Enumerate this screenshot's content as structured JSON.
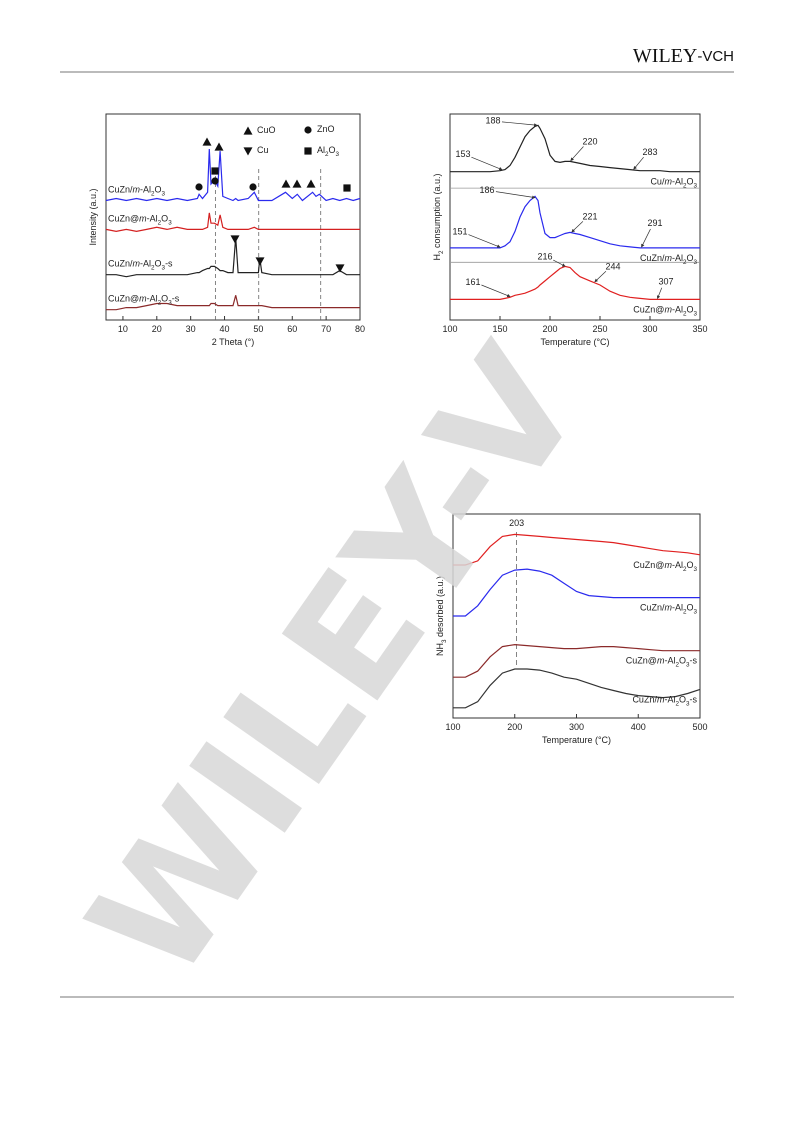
{
  "header": {
    "brand": "WILEY-VCH"
  },
  "watermark": "WILEY-V",
  "chart_data": [
    {
      "type": "line",
      "xlabel": "2 Theta (°)",
      "ylabel": "Intensity (a.u.)",
      "xlim": [
        5,
        80
      ],
      "xticks": [
        10,
        20,
        30,
        40,
        50,
        60,
        70,
        80
      ],
      "ylim": [
        0,
        100
      ],
      "legend": [
        {
          "symbol": "triangle-up",
          "label": "CuO"
        },
        {
          "symbol": "circle",
          "label": "ZnO"
        },
        {
          "symbol": "triangle-down",
          "label": "Cu"
        },
        {
          "symbol": "square",
          "label": "Al2O3"
        }
      ],
      "ref_lines": [
        37.3,
        50.1,
        68.4
      ],
      "x": [
        5,
        8,
        11,
        14,
        17,
        20,
        23,
        26,
        29,
        32,
        32.5,
        33.5,
        35,
        35.5,
        36,
        37,
        38,
        38.7,
        39.5,
        41,
        42.5,
        43.3,
        44,
        47,
        48.8,
        50,
        50.4,
        51,
        54,
        58,
        60,
        61.5,
        63,
        66,
        67,
        68,
        70,
        72,
        74,
        76,
        78,
        80
      ],
      "series": [
        {
          "name": "CuZn/m-Al2O3",
          "color": "#2a2aee",
          "values": [
            58,
            59,
            58,
            59,
            58,
            59,
            58,
            59,
            58,
            59,
            61,
            59,
            62,
            83,
            66,
            68,
            65,
            82,
            60,
            59,
            58,
            59,
            58,
            59,
            62,
            58,
            58,
            58,
            58,
            62,
            59,
            61,
            58,
            62,
            60,
            61,
            58,
            59,
            58,
            59,
            58,
            59
          ]
        },
        {
          "name": "CuZn@m-Al2O3",
          "color": "#d42020",
          "values": [
            44,
            43,
            44,
            43,
            44,
            45,
            44,
            45,
            44,
            44,
            44,
            44,
            45,
            52,
            47,
            47,
            46,
            51,
            45,
            44,
            44,
            44,
            44,
            44,
            45,
            44,
            44,
            44,
            44,
            44,
            44,
            44,
            44,
            44,
            44,
            44,
            44,
            44,
            44,
            44,
            44,
            44
          ]
        },
        {
          "name": "CuZn/m-Al2O3-s",
          "color": "#222222",
          "values": [
            22,
            22,
            21,
            22,
            22,
            22,
            22,
            22,
            22,
            23,
            23,
            24,
            25,
            25,
            26,
            26,
            25,
            24,
            24,
            23,
            23,
            40,
            23,
            23,
            23,
            23,
            30,
            23,
            22,
            22,
            22,
            22,
            22,
            22,
            22,
            22,
            22,
            22,
            24,
            22,
            22,
            22
          ]
        },
        {
          "name": "CuZn@m-Al2O3-s",
          "color": "#8b2a2a",
          "values": [
            5,
            5,
            6,
            6,
            7,
            8,
            8,
            7,
            7,
            7,
            7,
            7,
            7,
            7,
            8,
            8,
            7,
            7,
            7,
            7,
            7,
            12,
            7,
            7,
            7,
            7,
            7,
            7,
            6,
            6,
            6,
            6,
            6,
            6,
            6,
            6,
            6,
            6,
            6,
            6,
            6,
            6
          ]
        }
      ]
    },
    {
      "type": "line",
      "xlabel": "Temperature (°C)",
      "ylabel": "H2 consumption (a.u.)",
      "xlim": [
        100,
        350
      ],
      "xticks": [
        100,
        150,
        200,
        250,
        300,
        350
      ],
      "ylim": [
        0,
        100
      ],
      "panel_dividers": [
        64,
        28
      ],
      "x": [
        100,
        110,
        120,
        130,
        140,
        150,
        155,
        160,
        165,
        170,
        175,
        180,
        185,
        188,
        190,
        195,
        200,
        205,
        210,
        215,
        220,
        225,
        230,
        240,
        250,
        260,
        270,
        280,
        290,
        300,
        310,
        320,
        330,
        340,
        350
      ],
      "series": [
        {
          "name": "Cu/m-Al2O3",
          "color": "#222222",
          "peaks": [
            153,
            188,
            220,
            283
          ],
          "values": [
            72,
            72,
            72,
            72,
            72,
            72.5,
            73,
            75,
            79,
            84,
            89,
            92,
            94,
            94.5,
            93,
            88,
            80,
            77,
            76.5,
            77,
            77,
            76.5,
            76,
            75,
            74.5,
            74,
            73.5,
            73,
            72.5,
            72.5,
            72.5,
            72,
            72,
            72,
            72
          ]
        },
        {
          "name": "CuZn/m-Al2O3",
          "color": "#2a2aee",
          "peaks": [
            151,
            186,
            221,
            291
          ],
          "values": [
            35,
            35,
            35,
            35,
            35,
            35,
            36,
            38,
            43,
            50,
            55,
            58,
            60,
            58,
            52,
            42,
            40,
            40,
            41,
            42,
            42.5,
            42,
            41.5,
            40,
            38.5,
            37,
            36,
            35.5,
            35,
            35,
            35,
            35,
            35,
            35,
            35
          ]
        },
        {
          "name": "CuZn@m-Al2O3",
          "color": "#e02020",
          "peaks": [
            161,
            216,
            244,
            307
          ],
          "values": [
            10,
            10,
            10,
            10,
            10,
            10,
            10.5,
            11,
            12,
            12.5,
            13,
            14,
            15,
            16,
            17,
            19,
            21,
            23,
            25,
            26,
            25.5,
            23,
            21,
            19,
            17,
            14,
            12,
            11,
            10.5,
            10,
            10,
            10,
            10,
            10,
            10
          ]
        }
      ]
    },
    {
      "type": "line",
      "xlabel": "Temperature (°C)",
      "ylabel": "NH3 desorbed (a.u.)",
      "xlim": [
        100,
        500
      ],
      "xticks": [
        100,
        200,
        300,
        400,
        500
      ],
      "ylim": [
        0,
        100
      ],
      "peak_line": 203,
      "x": [
        100,
        120,
        140,
        160,
        180,
        200,
        220,
        240,
        260,
        280,
        300,
        320,
        340,
        360,
        380,
        400,
        420,
        440,
        460,
        480,
        500
      ],
      "series": [
        {
          "name": "CuZn@m-Al2O3",
          "color": "#e02020",
          "values": [
            75,
            75,
            77,
            84,
            89,
            90,
            89.5,
            89,
            88.5,
            88,
            87.5,
            87,
            86.5,
            86,
            85,
            84,
            83,
            82,
            81.5,
            81,
            80
          ]
        },
        {
          "name": "CuZn/m-Al2O3",
          "color": "#2a2aee",
          "values": [
            50,
            50,
            55,
            63,
            70,
            72.5,
            73,
            72,
            70,
            66,
            62,
            60,
            59.5,
            59,
            59,
            59,
            59,
            59,
            59,
            59,
            59
          ]
        },
        {
          "name": "CuZn@m-Al2O3-s",
          "color": "#8b2a2a",
          "values": [
            20,
            20,
            23,
            30,
            35,
            36,
            35.5,
            35,
            34.5,
            34,
            34,
            34.5,
            35,
            35,
            34.5,
            34,
            33.5,
            33,
            33,
            33,
            33
          ]
        },
        {
          "name": "CuZn/m-Al2O3-s",
          "color": "#333333",
          "values": [
            5,
            5,
            8,
            16,
            22,
            24,
            24,
            23.5,
            22,
            20,
            19,
            17,
            15,
            13.5,
            12,
            11,
            10.5,
            10,
            10.5,
            12,
            14
          ]
        }
      ]
    }
  ]
}
